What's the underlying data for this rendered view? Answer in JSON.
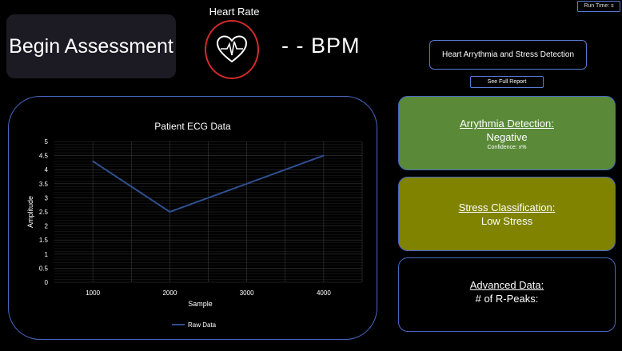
{
  "begin_button": {
    "label": "Begin Assessment"
  },
  "heart_rate": {
    "title": "Heart Rate",
    "bpm_text": "- - BPM",
    "icon": "heart-ecg-icon"
  },
  "run_time": "Run Time: s",
  "app_title": "Heart Arrythmia and Stress Detection",
  "report_button": "See Full Report",
  "cards": {
    "arrhythmia": {
      "title": "Arrythmia Detection:",
      "value": "Negative",
      "confidence": "Confidence: x%"
    },
    "stress": {
      "title": "Stress Classification:",
      "value": "Low Stress"
    },
    "advanced": {
      "title": "Advanced Data:",
      "value": "# of R-Peaks:"
    }
  },
  "colors": {
    "background": "#000000",
    "border_blue": "#4a68c4",
    "heart_ring": "#d42a2a",
    "arrhythmia_card": "#5a8a38",
    "stress_card": "#7f8300",
    "series_line": "#2f4f8f"
  },
  "chart_data": {
    "type": "line",
    "title": "Patient ECG Data",
    "xlabel": "Sample",
    "ylabel": "Amplitude",
    "x": [
      1000,
      2000,
      3000,
      4000
    ],
    "x_tick_labels": [
      "1000",
      "2000",
      "3000",
      "4000"
    ],
    "y_ticks": [
      "0",
      "0.5",
      "1",
      "1.5",
      "2",
      "2.5",
      "3",
      "3.5",
      "4",
      "4.5",
      "5"
    ],
    "ylim": [
      0,
      5
    ],
    "series": [
      {
        "name": "Raw Data",
        "values": [
          4.3,
          2.5,
          3.5,
          4.5
        ]
      }
    ],
    "grid": true,
    "legend": "bottom"
  }
}
